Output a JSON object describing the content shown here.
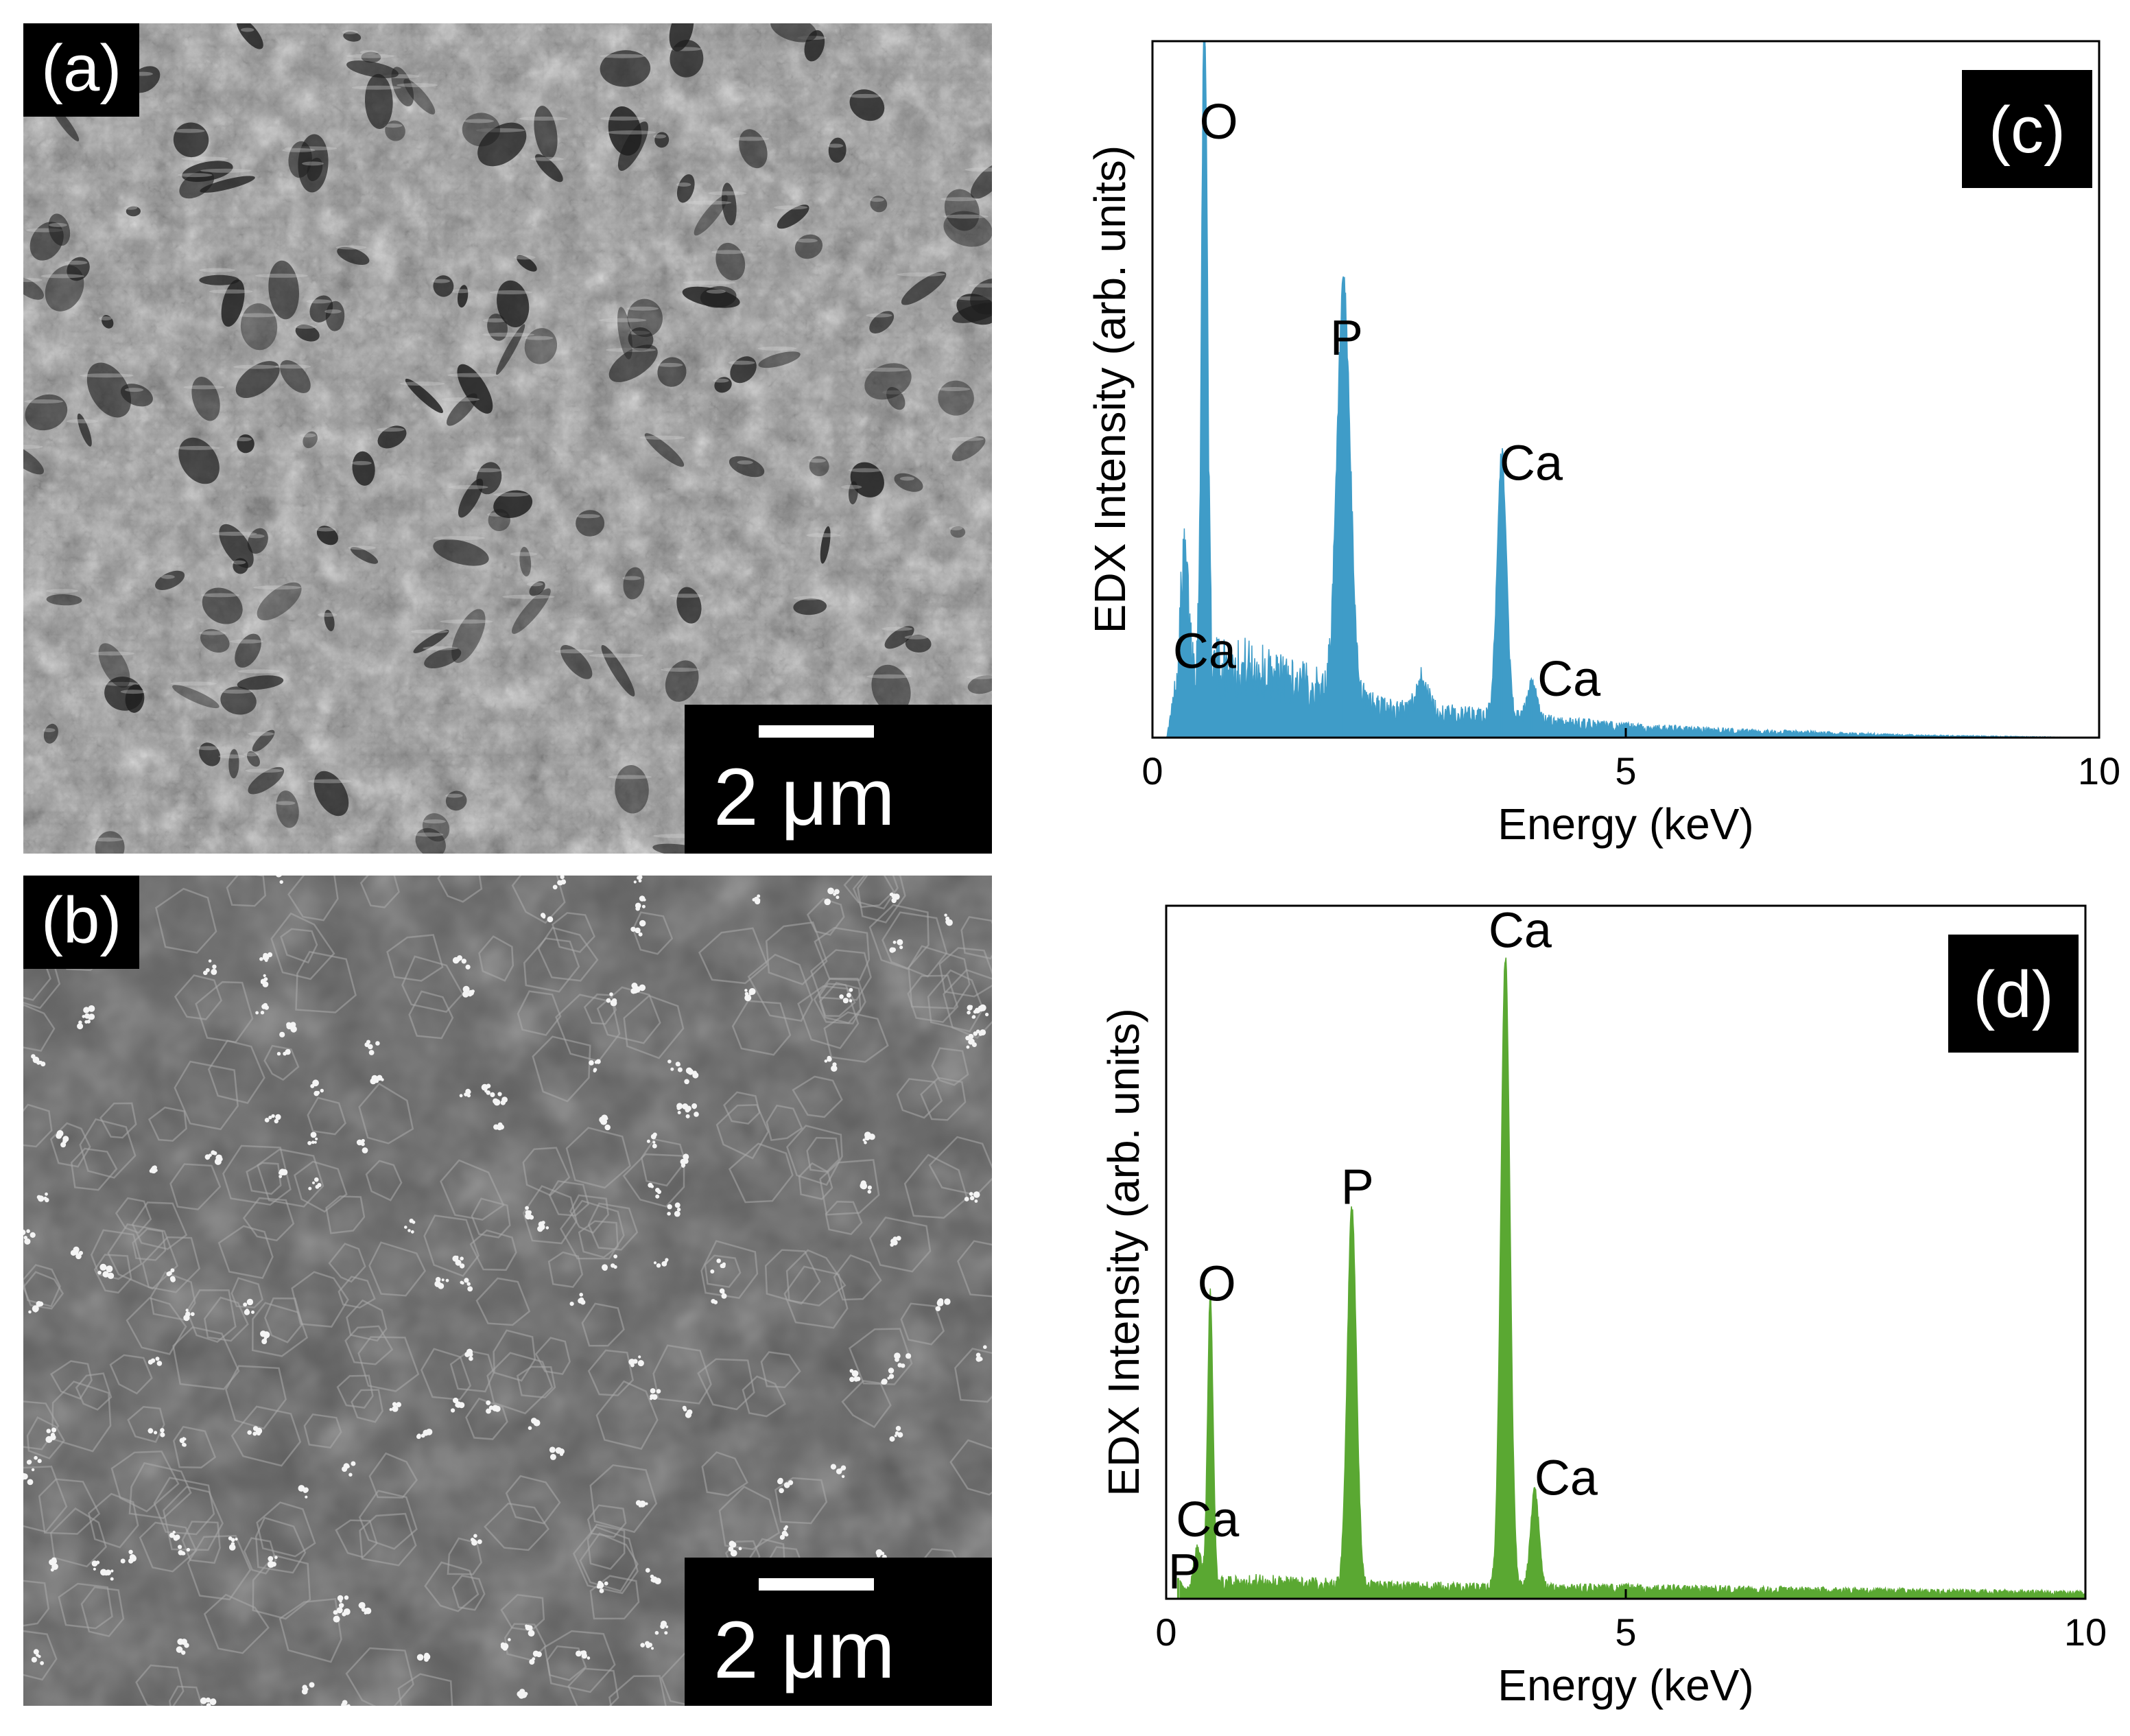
{
  "panels": {
    "a": {
      "label": "(a)",
      "scale_text": "2 μm",
      "texture": "porous"
    },
    "b": {
      "label": "(b)",
      "scale_text": "2 μm",
      "texture": "grains"
    }
  },
  "chart_data": [
    {
      "id": "c",
      "type": "area",
      "panel_label": "(c)",
      "color": "#3f9cc8",
      "xlabel": "Energy (keV)",
      "ylabel": "EDX Intensity (arb. units)",
      "xlim": [
        0,
        10
      ],
      "ylim": [
        0,
        100
      ],
      "xticks": [
        0,
        5,
        10
      ],
      "xtick_labels": [
        "0",
        "5",
        "10"
      ],
      "baseline": 4,
      "background": [
        [
          0.3,
          10
        ],
        [
          1.0,
          10
        ],
        [
          1.5,
          8
        ],
        [
          2.5,
          4
        ],
        [
          3.5,
          3
        ],
        [
          5.0,
          1.5
        ],
        [
          6.0,
          1
        ],
        [
          8.0,
          0.3
        ],
        [
          10.0,
          0
        ]
      ],
      "peaks": [
        {
          "element": "Ca",
          "x": 0.34,
          "height": 16,
          "width": 0.04
        },
        {
          "element": "O",
          "x": 0.55,
          "height": 96,
          "width": 0.03
        },
        {
          "element": "P",
          "x": 2.02,
          "height": 58,
          "width": 0.07
        },
        {
          "element": "",
          "x": 2.85,
          "height": 5,
          "width": 0.06
        },
        {
          "element": "Ca",
          "x": 3.69,
          "height": 38,
          "width": 0.05
        },
        {
          "element": "Ca",
          "x": 4.01,
          "height": 5,
          "width": 0.05
        }
      ],
      "annotations": [
        {
          "text": "O",
          "x": 0.7,
          "y": 86
        },
        {
          "text": "P",
          "x": 2.05,
          "y": 55
        },
        {
          "text": "Ca",
          "x": 4.0,
          "y": 37
        },
        {
          "text": "Ca",
          "x": 0.55,
          "y": 10
        },
        {
          "text": "Ca",
          "x": 4.4,
          "y": 6
        }
      ]
    },
    {
      "id": "d",
      "type": "area",
      "panel_label": "(d)",
      "color": "#5aa832",
      "xlabel": "Energy (keV)",
      "ylabel": "EDX Intensity (arb. units)",
      "xlim": [
        0,
        10
      ],
      "ylim": [
        0,
        100
      ],
      "xticks": [
        0,
        5,
        10
      ],
      "xtick_labels": [
        "0",
        "5",
        "10"
      ],
      "baseline": 0.5,
      "background": [
        [
          0.3,
          2
        ],
        [
          1.0,
          2.5
        ],
        [
          1.5,
          2.2
        ],
        [
          2.5,
          1.8
        ],
        [
          3.5,
          1.6
        ],
        [
          5.0,
          1.5
        ],
        [
          7.0,
          1.2
        ],
        [
          10.0,
          0.8
        ]
      ],
      "peaks": [
        {
          "element": "P",
          "x": 0.13,
          "height": 3,
          "width": 0.04
        },
        {
          "element": "Ca",
          "x": 0.34,
          "height": 5,
          "width": 0.04
        },
        {
          "element": "O",
          "x": 0.48,
          "height": 42,
          "width": 0.03
        },
        {
          "element": "P",
          "x": 2.02,
          "height": 54,
          "width": 0.05
        },
        {
          "element": "Ca",
          "x": 3.69,
          "height": 91,
          "width": 0.05
        },
        {
          "element": "Ca",
          "x": 4.01,
          "height": 14,
          "width": 0.045
        }
      ],
      "annotations": [
        {
          "text": "Ca",
          "x": 3.85,
          "y": 94
        },
        {
          "text": "P",
          "x": 2.08,
          "y": 57
        },
        {
          "text": "O",
          "x": 0.55,
          "y": 43
        },
        {
          "text": "Ca",
          "x": 4.35,
          "y": 15
        },
        {
          "text": "Ca",
          "x": 0.45,
          "y": 9
        },
        {
          "text": "P",
          "x": 0.2,
          "y": 1.5
        }
      ]
    }
  ]
}
